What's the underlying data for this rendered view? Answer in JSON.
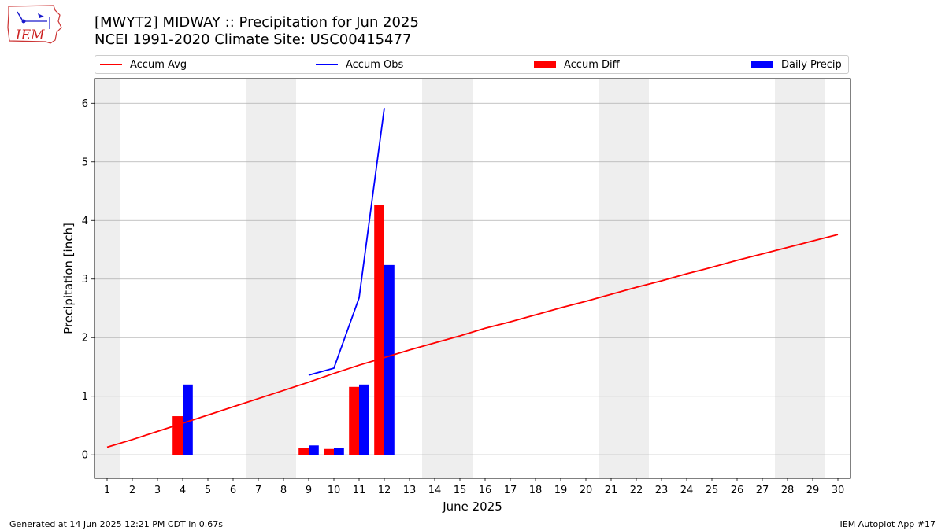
{
  "header": {
    "title_line1": "[MWYT2] MIDWAY :: Precipitation for Jun 2025",
    "title_line2": "NCEI 1991-2020 Climate Site: USC00415477"
  },
  "logo": {
    "text": "IEM"
  },
  "legend": [
    {
      "label": "Accum Avg",
      "kind": "line",
      "color": "#ff0000"
    },
    {
      "label": "Accum Obs",
      "kind": "line",
      "color": "#0000ff"
    },
    {
      "label": "Accum Diff",
      "kind": "box",
      "color": "#ff0000"
    },
    {
      "label": "Daily Precip",
      "kind": "box",
      "color": "#0000ff"
    }
  ],
  "footer": {
    "left": "Generated at 14 Jun 2025 12:21 PM CDT in 0.67s",
    "right": "IEM Autoplot App #17"
  },
  "chart_data": {
    "type": "bar",
    "title": "[MWYT2] MIDWAY :: Precipitation for Jun 2025",
    "subtitle": "NCEI 1991-2020 Climate Site: USC00415477",
    "xlabel": "June 2025",
    "ylabel": "Precipitation [inch]",
    "xlim": [
      0.5,
      30.5
    ],
    "ylim": [
      -0.4,
      6.42
    ],
    "yticks": [
      0,
      1,
      2,
      3,
      4,
      5,
      6
    ],
    "days": [
      1,
      2,
      3,
      4,
      5,
      6,
      7,
      8,
      9,
      10,
      11,
      12,
      13,
      14,
      15,
      16,
      17,
      18,
      19,
      20,
      21,
      22,
      23,
      24,
      25,
      26,
      27,
      28,
      29,
      30
    ],
    "weekend_days": [
      1,
      7,
      8,
      14,
      15,
      21,
      22,
      28,
      29
    ],
    "grid": "y",
    "legend_position": "top",
    "series": [
      {
        "name": "Accum Avg",
        "kind": "line",
        "color": "#ff0000",
        "x": [
          1,
          2,
          3,
          4,
          5,
          6,
          7,
          8,
          9,
          10,
          11,
          12,
          13,
          14,
          15,
          16,
          17,
          18,
          19,
          20,
          21,
          22,
          23,
          24,
          25,
          26,
          27,
          28,
          29,
          30
        ],
        "values": [
          0.13,
          0.26,
          0.4,
          0.54,
          0.68,
          0.82,
          0.96,
          1.1,
          1.24,
          1.39,
          1.53,
          1.66,
          1.79,
          1.91,
          2.03,
          2.16,
          2.27,
          2.39,
          2.51,
          2.62,
          2.74,
          2.86,
          2.97,
          3.09,
          3.2,
          3.32,
          3.43,
          3.54,
          3.65,
          3.76
        ]
      },
      {
        "name": "Accum Obs",
        "kind": "line",
        "color": "#0000ff",
        "x": [
          9,
          10,
          11,
          12
        ],
        "values": [
          1.36,
          1.48,
          2.68,
          5.92
        ]
      },
      {
        "name": "Accum Diff",
        "kind": "bar",
        "color": "#ff0000",
        "x": [
          4,
          9,
          10,
          11,
          12
        ],
        "values": [
          0.66,
          0.12,
          0.1,
          1.16,
          4.26
        ]
      },
      {
        "name": "Daily Precip",
        "kind": "bar",
        "color": "#0000ff",
        "x": [
          4,
          9,
          10,
          11,
          12
        ],
        "values": [
          1.2,
          0.16,
          0.12,
          1.2,
          3.24
        ]
      }
    ]
  }
}
